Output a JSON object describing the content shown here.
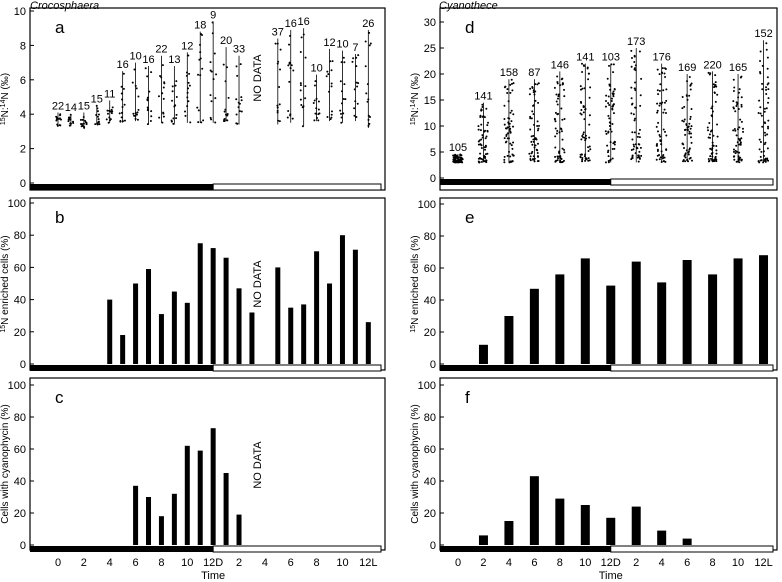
{
  "organisms": {
    "left": "Crocosphaera",
    "right": "Cyanothece"
  },
  "x_ticks": [
    "0",
    "2",
    "4",
    "6",
    "8",
    "10",
    "12D",
    "2",
    "4",
    "6",
    "8",
    "10",
    "12L"
  ],
  "x_label": "Time",
  "colors": {
    "dark": "#000000",
    "light": "#ffffff"
  },
  "chart_data": [
    {
      "panel": "a",
      "type": "scatter",
      "ylabel_sup": "15",
      "ylabel_mid": "N:",
      "ylabel_sup2": "14",
      "ylabel_end": "N (‰)",
      "ylim": [
        0,
        10
      ],
      "yticks": [
        "0",
        "2",
        "4",
        "6",
        "8",
        "10"
      ],
      "annotation": "NO DATA",
      "groups": [
        {
          "x": 0,
          "n": "22",
          "lo": 3.3,
          "hi": 4.1
        },
        {
          "x": 1,
          "n": "14",
          "lo": 3.3,
          "hi": 4.0
        },
        {
          "x": 2,
          "n": "15",
          "lo": 3.2,
          "hi": 4.1
        },
        {
          "x": 3,
          "n": "15",
          "lo": 3.4,
          "hi": 4.5
        },
        {
          "x": 4,
          "n": "11",
          "lo": 3.5,
          "hi": 4.8
        },
        {
          "x": 5,
          "n": "16",
          "lo": 3.5,
          "hi": 6.5
        },
        {
          "x": 6,
          "n": "10",
          "lo": 3.6,
          "hi": 7.0
        },
        {
          "x": 7,
          "n": "16",
          "lo": 3.4,
          "hi": 6.8
        },
        {
          "x": 8,
          "n": "22",
          "lo": 3.5,
          "hi": 7.4
        },
        {
          "x": 9,
          "n": "13",
          "lo": 3.4,
          "hi": 6.8
        },
        {
          "x": 10,
          "n": "12",
          "lo": 3.5,
          "hi": 7.6
        },
        {
          "x": 11,
          "n": "18",
          "lo": 3.5,
          "hi": 8.8
        },
        {
          "x": 12,
          "n": "9",
          "lo": 3.5,
          "hi": 9.4
        },
        {
          "x": 13,
          "n": "20",
          "lo": 3.6,
          "hi": 7.9
        },
        {
          "x": 14,
          "n": "33",
          "lo": 3.4,
          "hi": 7.4
        },
        {
          "x": 17,
          "n": "37",
          "lo": 3.4,
          "hi": 8.4
        },
        {
          "x": 18,
          "n": "16",
          "lo": 3.5,
          "hi": 8.9
        },
        {
          "x": 19,
          "n": "16",
          "lo": 3.3,
          "hi": 9.0
        },
        {
          "x": 20,
          "n": "10",
          "lo": 3.6,
          "hi": 6.3
        },
        {
          "x": 21,
          "n": "12",
          "lo": 3.6,
          "hi": 7.8
        },
        {
          "x": 22,
          "n": "10",
          "lo": 3.5,
          "hi": 7.7
        },
        {
          "x": 23,
          "n": "7",
          "lo": 3.6,
          "hi": 7.5
        },
        {
          "x": 24,
          "n": "26",
          "lo": 3.2,
          "hi": 8.9
        }
      ]
    },
    {
      "panel": "b",
      "type": "bar",
      "ylabel_sup": "15",
      "ylabel_end": "N enriched cells (%)",
      "ylim": [
        0,
        100
      ],
      "yticks": [
        "0",
        "20",
        "40",
        "60",
        "80",
        "100"
      ],
      "annotation": "NO DATA",
      "bars": [
        {
          "x": 4,
          "v": 40
        },
        {
          "x": 5,
          "v": 18
        },
        {
          "x": 6,
          "v": 50
        },
        {
          "x": 7,
          "v": 59
        },
        {
          "x": 8,
          "v": 31
        },
        {
          "x": 9,
          "v": 45
        },
        {
          "x": 10,
          "v": 38
        },
        {
          "x": 11,
          "v": 75
        },
        {
          "x": 12,
          "v": 72
        },
        {
          "x": 13,
          "v": 66
        },
        {
          "x": 14,
          "v": 47
        },
        {
          "x": 15,
          "v": 32
        },
        {
          "x": 17,
          "v": 60
        },
        {
          "x": 18,
          "v": 35
        },
        {
          "x": 19,
          "v": 37
        },
        {
          "x": 20,
          "v": 70
        },
        {
          "x": 21,
          "v": 50
        },
        {
          "x": 22,
          "v": 80
        },
        {
          "x": 23,
          "v": 71
        },
        {
          "x": 24,
          "v": 26
        }
      ]
    },
    {
      "panel": "c",
      "type": "bar",
      "ylabel": "Cells with cyanophycin (%)",
      "ylim": [
        0,
        100
      ],
      "yticks": [
        "0",
        "20",
        "40",
        "60",
        "80",
        "100"
      ],
      "annotation": "NO DATA",
      "bars": [
        {
          "x": 6,
          "v": 37
        },
        {
          "x": 7,
          "v": 30
        },
        {
          "x": 8,
          "v": 18
        },
        {
          "x": 9,
          "v": 32
        },
        {
          "x": 10,
          "v": 62
        },
        {
          "x": 11,
          "v": 59
        },
        {
          "x": 12,
          "v": 73
        },
        {
          "x": 13,
          "v": 45
        },
        {
          "x": 14,
          "v": 19
        }
      ]
    },
    {
      "panel": "d",
      "type": "scatter",
      "ylabel_sup": "15",
      "ylabel_mid": "N:",
      "ylabel_sup2": "14",
      "ylabel_end": "N (‰)",
      "ylim": [
        0,
        30
      ],
      "yticks": [
        "0",
        "5",
        "10",
        "15",
        "20",
        "25",
        "30"
      ],
      "groups": [
        {
          "x": 0,
          "n": "105",
          "lo": 3.0,
          "hi": 4.6
        },
        {
          "x": 2,
          "n": "141",
          "lo": 3.0,
          "hi": 14.5
        },
        {
          "x": 4,
          "n": "158",
          "lo": 3.0,
          "hi": 19.0
        },
        {
          "x": 6,
          "n": "87",
          "lo": 3.2,
          "hi": 19.0
        },
        {
          "x": 8,
          "n": "146",
          "lo": 3.0,
          "hi": 20.5
        },
        {
          "x": 10,
          "n": "141",
          "lo": 3.2,
          "hi": 22.0
        },
        {
          "x": 12,
          "n": "103",
          "lo": 3.0,
          "hi": 22.0
        },
        {
          "x": 14,
          "n": "173",
          "lo": 3.0,
          "hi": 25.0
        },
        {
          "x": 16,
          "n": "176",
          "lo": 3.0,
          "hi": 22.0
        },
        {
          "x": 18,
          "n": "169",
          "lo": 3.2,
          "hi": 20.0
        },
        {
          "x": 20,
          "n": "220",
          "lo": 3.2,
          "hi": 20.5
        },
        {
          "x": 22,
          "n": "165",
          "lo": 3.0,
          "hi": 20.0
        },
        {
          "x": 24,
          "n": "152",
          "lo": 3.0,
          "hi": 26.5
        }
      ]
    },
    {
      "panel": "e",
      "type": "bar",
      "ylabel_sup": "15",
      "ylabel_end": "N enriched cells (%)",
      "ylim": [
        0,
        100
      ],
      "yticks": [
        "0",
        "20",
        "40",
        "60",
        "80",
        "100"
      ],
      "bars": [
        {
          "x": 2,
          "v": 12
        },
        {
          "x": 4,
          "v": 30
        },
        {
          "x": 6,
          "v": 47
        },
        {
          "x": 8,
          "v": 56
        },
        {
          "x": 10,
          "v": 66
        },
        {
          "x": 12,
          "v": 49
        },
        {
          "x": 14,
          "v": 64
        },
        {
          "x": 16,
          "v": 51
        },
        {
          "x": 18,
          "v": 65
        },
        {
          "x": 20,
          "v": 56
        },
        {
          "x": 22,
          "v": 66
        },
        {
          "x": 24,
          "v": 68
        }
      ]
    },
    {
      "panel": "f",
      "type": "bar",
      "ylabel": "Cells with cyanophycin (%)",
      "ylim": [
        0,
        100
      ],
      "yticks": [
        "0",
        "20",
        "40",
        "60",
        "80",
        "100"
      ],
      "bars": [
        {
          "x": 2,
          "v": 6
        },
        {
          "x": 4,
          "v": 15
        },
        {
          "x": 6,
          "v": 43
        },
        {
          "x": 8,
          "v": 29
        },
        {
          "x": 10,
          "v": 25
        },
        {
          "x": 12,
          "v": 17
        },
        {
          "x": 14,
          "v": 24
        },
        {
          "x": 16,
          "v": 9
        },
        {
          "x": 18,
          "v": 4
        }
      ]
    }
  ]
}
